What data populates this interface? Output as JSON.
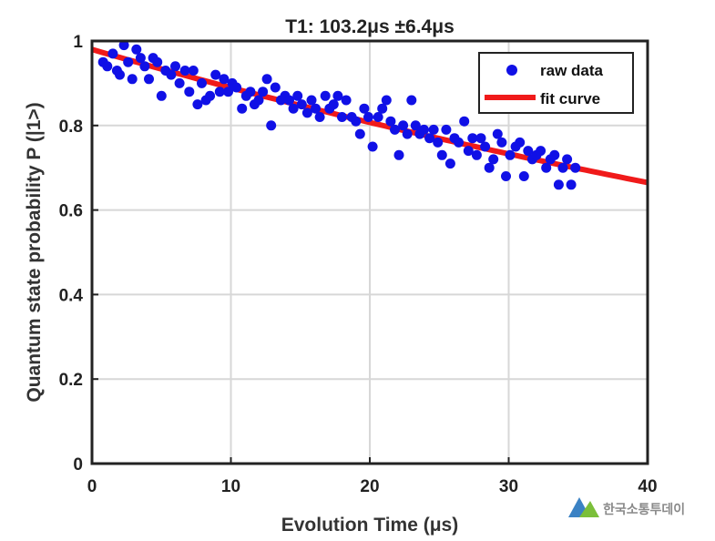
{
  "watermark": {
    "text": "한국소통투데이"
  },
  "chart_data": {
    "type": "scatter",
    "title": "T1: 103.2μs ±6.4μs",
    "xlabel": "Evolution Time (μs)",
    "ylabel": "Quantum state probability P (|1>)",
    "xlim": [
      0,
      40
    ],
    "ylim": [
      0,
      1
    ],
    "xticks": [
      0,
      10,
      20,
      30,
      40
    ],
    "yticks": [
      0,
      0.2,
      0.4,
      0.6,
      0.8,
      1
    ],
    "ytick_labels": [
      "0",
      "0.2",
      "0.4",
      "0.6",
      "0.8",
      "1"
    ],
    "grid": true,
    "legend_position": "top-right",
    "colors": {
      "raw": "#1010e6",
      "fit": "#f01a1a",
      "axis": "#222222",
      "grid": "#d7d7d7"
    },
    "series": [
      {
        "name": "raw data",
        "kind": "scatter",
        "points": [
          [
            0.8,
            0.95
          ],
          [
            1.1,
            0.94
          ],
          [
            1.5,
            0.97
          ],
          [
            1.8,
            0.93
          ],
          [
            2.0,
            0.92
          ],
          [
            2.3,
            0.99
          ],
          [
            2.6,
            0.95
          ],
          [
            2.9,
            0.91
          ],
          [
            3.2,
            0.98
          ],
          [
            3.5,
            0.96
          ],
          [
            3.8,
            0.94
          ],
          [
            4.1,
            0.91
          ],
          [
            4.4,
            0.96
          ],
          [
            4.7,
            0.95
          ],
          [
            5.0,
            0.87
          ],
          [
            5.3,
            0.93
          ],
          [
            5.7,
            0.92
          ],
          [
            6.0,
            0.94
          ],
          [
            6.3,
            0.9
          ],
          [
            6.7,
            0.93
          ],
          [
            7.0,
            0.88
          ],
          [
            7.3,
            0.93
          ],
          [
            7.6,
            0.85
          ],
          [
            7.9,
            0.9
          ],
          [
            8.2,
            0.86
          ],
          [
            8.5,
            0.87
          ],
          [
            8.9,
            0.92
          ],
          [
            9.2,
            0.88
          ],
          [
            9.5,
            0.91
          ],
          [
            9.8,
            0.88
          ],
          [
            10.1,
            0.9
          ],
          [
            10.4,
            0.89
          ],
          [
            10.8,
            0.84
          ],
          [
            11.1,
            0.87
          ],
          [
            11.4,
            0.88
          ],
          [
            11.7,
            0.85
          ],
          [
            12.0,
            0.86
          ],
          [
            12.3,
            0.88
          ],
          [
            12.6,
            0.91
          ],
          [
            12.9,
            0.8
          ],
          [
            13.2,
            0.89
          ],
          [
            13.6,
            0.86
          ],
          [
            13.9,
            0.87
          ],
          [
            14.2,
            0.86
          ],
          [
            14.5,
            0.84
          ],
          [
            14.8,
            0.87
          ],
          [
            15.1,
            0.85
          ],
          [
            15.5,
            0.83
          ],
          [
            15.8,
            0.86
          ],
          [
            16.1,
            0.84
          ],
          [
            16.4,
            0.82
          ],
          [
            16.8,
            0.87
          ],
          [
            17.1,
            0.84
          ],
          [
            17.4,
            0.85
          ],
          [
            17.7,
            0.87
          ],
          [
            18.0,
            0.82
          ],
          [
            18.3,
            0.86
          ],
          [
            18.7,
            0.82
          ],
          [
            19.0,
            0.81
          ],
          [
            19.3,
            0.78
          ],
          [
            19.6,
            0.84
          ],
          [
            19.9,
            0.82
          ],
          [
            20.2,
            0.75
          ],
          [
            20.6,
            0.82
          ],
          [
            20.9,
            0.84
          ],
          [
            21.2,
            0.86
          ],
          [
            21.5,
            0.81
          ],
          [
            21.8,
            0.79
          ],
          [
            22.1,
            0.73
          ],
          [
            22.4,
            0.8
          ],
          [
            22.7,
            0.78
          ],
          [
            23.0,
            0.86
          ],
          [
            23.3,
            0.8
          ],
          [
            23.6,
            0.78
          ],
          [
            23.9,
            0.79
          ],
          [
            24.3,
            0.77
          ],
          [
            24.6,
            0.79
          ],
          [
            24.9,
            0.76
          ],
          [
            25.2,
            0.73
          ],
          [
            25.5,
            0.79
          ],
          [
            25.8,
            0.71
          ],
          [
            26.1,
            0.77
          ],
          [
            26.4,
            0.76
          ],
          [
            26.8,
            0.81
          ],
          [
            27.1,
            0.74
          ],
          [
            27.4,
            0.77
          ],
          [
            27.7,
            0.73
          ],
          [
            28.0,
            0.77
          ],
          [
            28.3,
            0.75
          ],
          [
            28.6,
            0.7
          ],
          [
            28.9,
            0.72
          ],
          [
            29.2,
            0.78
          ],
          [
            29.5,
            0.76
          ],
          [
            29.8,
            0.68
          ],
          [
            30.1,
            0.73
          ],
          [
            30.5,
            0.75
          ],
          [
            30.8,
            0.76
          ],
          [
            31.1,
            0.68
          ],
          [
            31.4,
            0.74
          ],
          [
            31.7,
            0.72
          ],
          [
            32.0,
            0.73
          ],
          [
            32.3,
            0.74
          ],
          [
            32.7,
            0.7
          ],
          [
            33.0,
            0.72
          ],
          [
            33.3,
            0.73
          ],
          [
            33.6,
            0.66
          ],
          [
            33.9,
            0.7
          ],
          [
            34.2,
            0.72
          ],
          [
            34.5,
            0.66
          ],
          [
            34.8,
            0.7
          ]
        ]
      },
      {
        "name": "fit curve",
        "kind": "line",
        "function": "A*exp(-t/T1)",
        "params": {
          "A": 0.98,
          "T1": 103.2
        },
        "x_range": [
          0,
          40
        ]
      }
    ]
  }
}
